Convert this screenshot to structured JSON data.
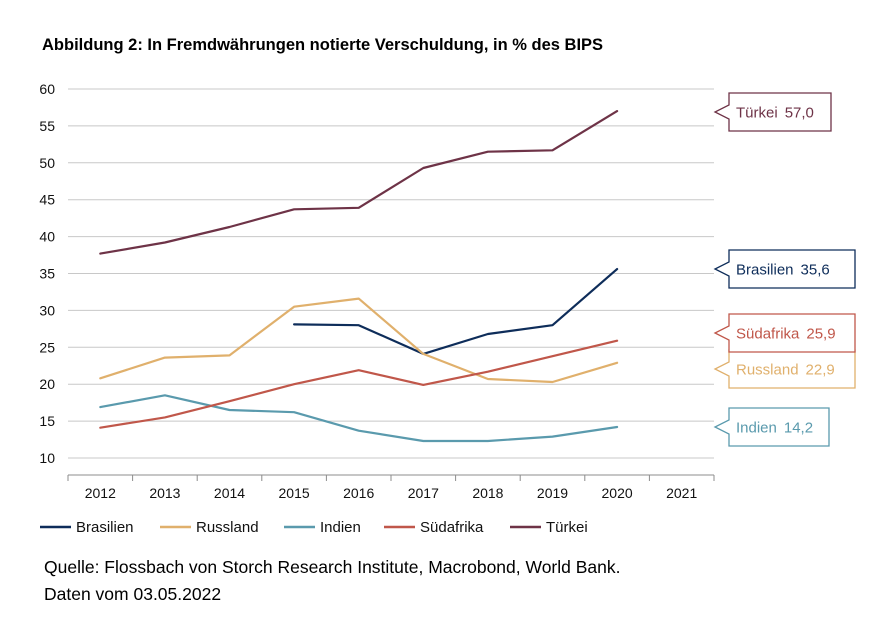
{
  "chart_data": {
    "type": "line",
    "title": "Abbildung 2: In Fremdwährungen notierte Verschuldung, in % des BIPS",
    "xlabel": "",
    "ylabel": "",
    "x": [
      2012,
      2013,
      2014,
      2015,
      2016,
      2017,
      2018,
      2019,
      2020,
      2021
    ],
    "x_tick_labels": [
      "2012",
      "2013",
      "2014",
      "2015",
      "2016",
      "2017",
      "2018",
      "2019",
      "2020",
      "2021"
    ],
    "ylim": [
      10,
      60
    ],
    "y_ticks": [
      10,
      15,
      20,
      25,
      30,
      35,
      40,
      45,
      50,
      55,
      60
    ],
    "y_tick_labels": [
      "10",
      "15",
      "20",
      "25",
      "30",
      "35",
      "40",
      "45",
      "50",
      "55",
      "60"
    ],
    "grid": true,
    "legend_position": "bottom",
    "series": [
      {
        "name": "Brasilien",
        "color": "#0e2d5a",
        "values": [
          null,
          null,
          null,
          28.1,
          28.0,
          24.1,
          26.8,
          28.0,
          35.6,
          null
        ],
        "end_label": "Brasilien",
        "end_value": "35,6"
      },
      {
        "name": "Russland",
        "color": "#e0b06c",
        "values": [
          20.8,
          23.6,
          23.9,
          30.5,
          31.6,
          24.1,
          20.7,
          20.3,
          22.9,
          null
        ],
        "end_label": "Russland",
        "end_value": "22,9"
      },
      {
        "name": "Indien",
        "color": "#5a9aad",
        "values": [
          16.9,
          18.5,
          16.5,
          16.2,
          13.7,
          12.3,
          12.3,
          12.9,
          14.2,
          null
        ],
        "end_label": "Indien",
        "end_value": "14,2"
      },
      {
        "name": "Südafrika",
        "color": "#c0574a",
        "values": [
          14.1,
          15.5,
          17.7,
          20.0,
          21.9,
          19.9,
          21.7,
          23.8,
          25.9,
          null
        ],
        "end_label": "Südafrika",
        "end_value": "25,9"
      },
      {
        "name": "Türkei",
        "color": "#6e3347",
        "values": [
          37.7,
          39.2,
          41.3,
          43.7,
          43.9,
          49.3,
          51.5,
          51.7,
          57.0,
          null
        ],
        "end_label": "Türkei",
        "end_value": "57,0"
      }
    ]
  },
  "footer": {
    "source": "Quelle: Flossbach von Storch Research Institute, Macrobond, World Bank.",
    "date": "Daten vom 03.05.2022"
  }
}
